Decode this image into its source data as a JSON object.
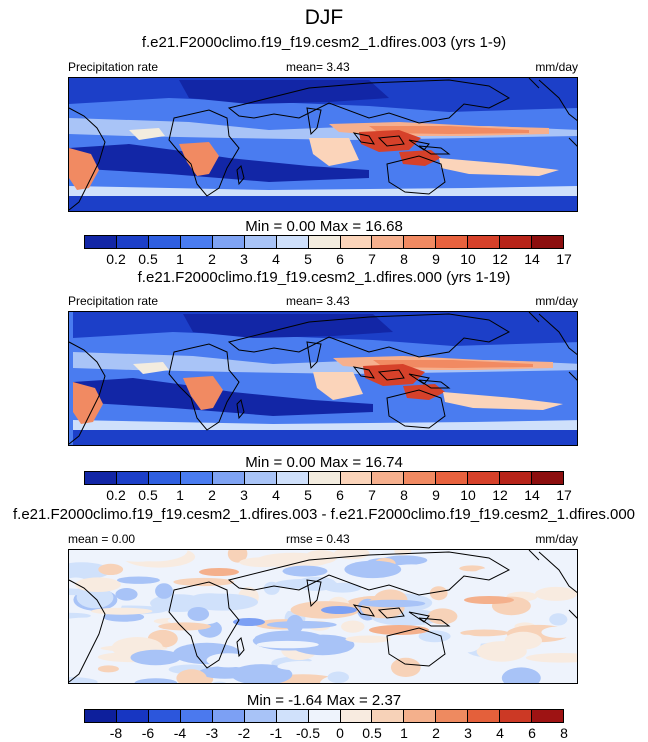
{
  "season": "DJF",
  "panels": [
    {
      "title": "f.e21.F2000climo.f19_f19.cesm2_1.dfires.003 (yrs 1-9)",
      "left_label": "Precipitation rate",
      "center_label": "mean=   3.43",
      "units": "mm/day",
      "minmax": "Min =   0.00 Max =  16.68",
      "palette": "precip",
      "levels": [
        "0.2",
        "0.5",
        "1",
        "2",
        "3",
        "4",
        "5",
        "6",
        "7",
        "8",
        "9",
        "10",
        "12",
        "14",
        "17"
      ]
    },
    {
      "title": "f.e21.F2000climo.f19_f19.cesm2_1.dfires.000 (yrs 1-19)",
      "left_label": "Precipitation rate",
      "center_label": "mean=   3.43",
      "units": "mm/day",
      "minmax": "Min =   0.00 Max =  16.74",
      "palette": "precip",
      "levels": [
        "0.2",
        "0.5",
        "1",
        "2",
        "3",
        "4",
        "5",
        "6",
        "7",
        "8",
        "9",
        "10",
        "12",
        "14",
        "17"
      ]
    },
    {
      "title": "f.e21.F2000climo.f19_f19.cesm2_1.dfires.003 - f.e21.F2000climo.f19_f19.cesm2_1.dfires.000",
      "left_label": "mean =   0.00",
      "center_label": "rmse =   0.43",
      "units": "mm/day",
      "minmax": "Min =  -1.64 Max =   2.37",
      "palette": "diff",
      "levels": [
        "-8",
        "-6",
        "-4",
        "-3",
        "-2",
        "-1",
        "-0.5",
        "0",
        "0.5",
        "1",
        "2",
        "3",
        "4",
        "6",
        "8"
      ]
    }
  ],
  "palettes": {
    "precip": [
      "#1226a6",
      "#1c3fc8",
      "#2f5fe0",
      "#4a7cf0",
      "#7fa3f3",
      "#a9c4f7",
      "#cfe0fb",
      "#f3ecdf",
      "#fbd4ba",
      "#f6b08e",
      "#f18a62",
      "#e8623e",
      "#d6412a",
      "#b72419",
      "#8c0e0e"
    ],
    "diff": [
      "#0d1f9c",
      "#1736c2",
      "#2c56dc",
      "#4b79ee",
      "#7ca0f4",
      "#a8c3f7",
      "#d0e1fb",
      "#eef3fc",
      "#f8ebe0",
      "#f7d2b8",
      "#f4b08c",
      "#ee8a60",
      "#e4603b",
      "#cc3925",
      "#9e1313"
    ]
  }
}
